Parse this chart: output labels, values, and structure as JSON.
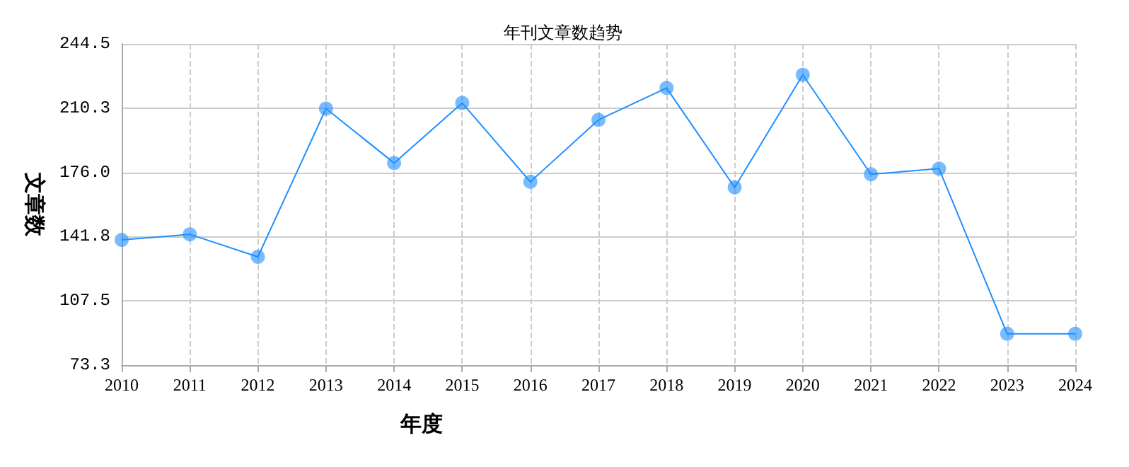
{
  "chart_data": {
    "type": "line",
    "title": "年刊文章数趋势",
    "xlabel": "年度",
    "ylabel": "文章数",
    "categories": [
      "2010",
      "2011",
      "2012",
      "2013",
      "2014",
      "2015",
      "2016",
      "2017",
      "2018",
      "2019",
      "2020",
      "2021",
      "2022",
      "2023",
      "2024"
    ],
    "series": [
      {
        "color": "#1e90ff",
        "values": [
          140,
          143,
          131,
          210,
          181,
          213,
          171,
          204,
          221,
          168,
          228,
          175,
          178,
          90,
          90
        ]
      }
    ],
    "ylim": [
      73.3,
      244.5
    ],
    "yticks": [
      {
        "value": 73.3,
        "label": "73.3"
      },
      {
        "value": 107.5,
        "label": "107.5"
      },
      {
        "value": 141.8,
        "label": "141.8"
      },
      {
        "value": 176.0,
        "label": "176.0"
      },
      {
        "value": 210.3,
        "label": "210.3"
      },
      {
        "value": 244.5,
        "label": "244.5"
      }
    ],
    "grid": true,
    "marker": "circle",
    "line_style": "solid"
  }
}
